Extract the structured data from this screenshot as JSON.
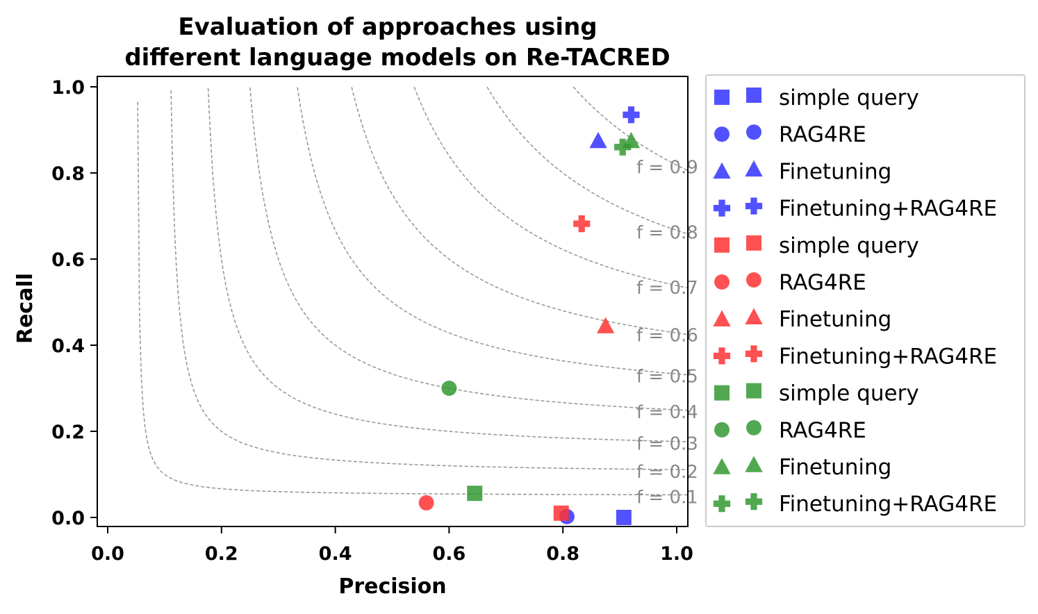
{
  "chart_data": {
    "type": "scatter",
    "title": [
      "Evaluation of approaches using",
      "different language models on Re-TACRED"
    ],
    "xlabel": "Precision",
    "ylabel": "Recall",
    "xlim": [
      -0.02,
      1.02
    ],
    "ylim": [
      -0.02,
      1.02
    ],
    "xticks": [
      "0.0",
      "0.2",
      "0.4",
      "0.6",
      "0.8",
      "1.0"
    ],
    "yticks": [
      "0.0",
      "0.2",
      "0.4",
      "0.6",
      "0.8",
      "1.0"
    ],
    "grid": false,
    "legend_position": "outside-right",
    "f_score_isolines": [
      {
        "f": 0.1,
        "label": "f = 0.1"
      },
      {
        "f": 0.2,
        "label": "f = 0.2"
      },
      {
        "f": 0.3,
        "label": "f = 0.3"
      },
      {
        "f": 0.4,
        "label": "f = 0.4"
      },
      {
        "f": 0.5,
        "label": "f = 0.5"
      },
      {
        "f": 0.6,
        "label": "f = 0.6"
      },
      {
        "f": 0.7,
        "label": "f = 0.7"
      },
      {
        "f": 0.8,
        "label": "f = 0.8"
      },
      {
        "f": 0.9,
        "label": "f = 0.9"
      }
    ],
    "series": [
      {
        "name": "simple query",
        "color": "#3333ff",
        "marker": "square",
        "x": 0.907,
        "y": 0.0
      },
      {
        "name": "RAG4RE",
        "color": "#3333ff",
        "marker": "circle",
        "x": 0.807,
        "y": 0.002
      },
      {
        "name": "Finetuning",
        "color": "#3333ff",
        "marker": "triangle",
        "x": 0.862,
        "y": 0.875
      },
      {
        "name": "Finetuning+RAG4RE",
        "color": "#3333ff",
        "marker": "plus",
        "x": 0.92,
        "y": 0.935
      },
      {
        "name": "simple query",
        "color": "#ff3333",
        "marker": "square",
        "x": 0.797,
        "y": 0.01
      },
      {
        "name": "RAG4RE",
        "color": "#ff3333",
        "marker": "circle",
        "x": 0.56,
        "y": 0.034
      },
      {
        "name": "Finetuning",
        "color": "#ff3333",
        "marker": "triangle",
        "x": 0.875,
        "y": 0.445
      },
      {
        "name": "Finetuning+RAG4RE",
        "color": "#ff3333",
        "marker": "plus",
        "x": 0.833,
        "y": 0.682
      },
      {
        "name": "simple query",
        "color": "#339933",
        "marker": "square",
        "x": 0.645,
        "y": 0.056
      },
      {
        "name": "RAG4RE",
        "color": "#339933",
        "marker": "circle",
        "x": 0.6,
        "y": 0.3
      },
      {
        "name": "Finetuning",
        "color": "#339933",
        "marker": "triangle",
        "x": 0.92,
        "y": 0.875
      },
      {
        "name": "Finetuning+RAG4RE",
        "color": "#339933",
        "marker": "plus",
        "x": 0.905,
        "y": 0.86
      }
    ]
  }
}
